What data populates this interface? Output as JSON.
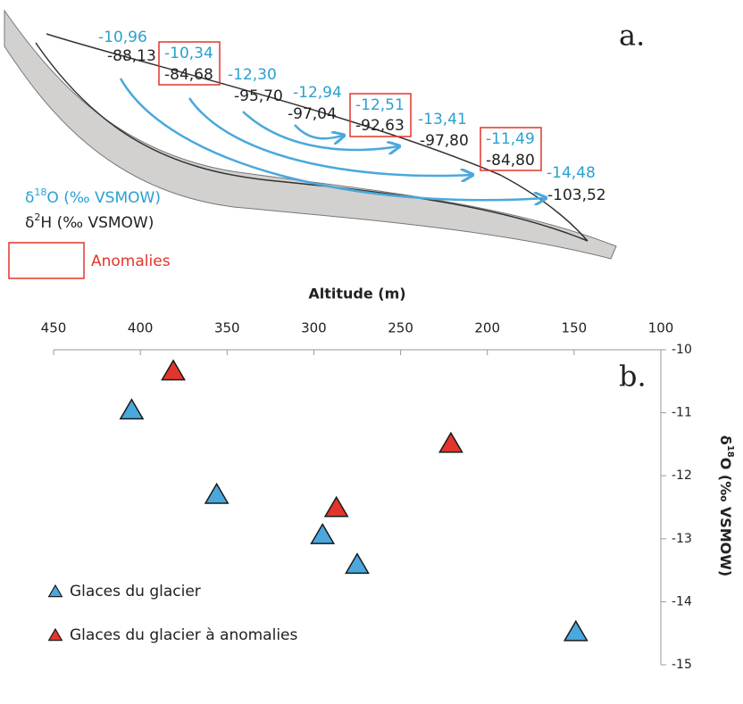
{
  "diagram": {
    "label": "a.",
    "pairs": [
      {
        "d18O": "-10,96",
        "d2H": "-88,13",
        "anomaly": false
      },
      {
        "d18O": "-10,34",
        "d2H": "-84,68",
        "anomaly": true
      },
      {
        "d18O": "-12,30",
        "d2H": "-95,70",
        "anomaly": false
      },
      {
        "d18O": "-12,94",
        "d2H": "-97,04",
        "anomaly": false
      },
      {
        "d18O": "-12,51",
        "d2H": "-92,63",
        "anomaly": true
      },
      {
        "d18O": "-13,41",
        "d2H": "-97,80",
        "anomaly": false
      },
      {
        "d18O": "-11,49",
        "d2H": "-84,80",
        "anomaly": true
      },
      {
        "d18O": "-14,48",
        "d2H": "-103,52",
        "anomaly": false
      }
    ],
    "legend": {
      "o": {
        "prefix": "δ",
        "sup": "18",
        "suffix": "O (‰ VSMOW)"
      },
      "h": {
        "prefix": "δ",
        "sup": "2",
        "suffix": "H (‰ VSMOW)"
      },
      "anomalies": "Anomalies"
    }
  },
  "chart_data": {
    "type": "scatter",
    "label": "b.",
    "x_label": "Altitude (m)",
    "y_label": {
      "prefix": "δ",
      "sup": "18",
      "suffix": "O (‰ VSMOW)"
    },
    "xlim": [
      450,
      100
    ],
    "xticks": [
      450,
      400,
      350,
      300,
      250,
      200,
      150,
      100
    ],
    "ylim": [
      -15,
      -10
    ],
    "yticks": [
      -10,
      -11,
      -12,
      -13,
      -14,
      -15
    ],
    "series": [
      {
        "name": "Glaces du glacier",
        "color": "#4aa8dc",
        "x": [
          405,
          356,
          295,
          275,
          149
        ],
        "values": [
          -10.96,
          -12.3,
          -12.94,
          -13.41,
          -14.48
        ]
      },
      {
        "name": "Glaces du glacier à anomalies",
        "color": "#e2352b",
        "x": [
          381,
          287,
          221
        ],
        "values": [
          -10.34,
          -12.51,
          -11.49
        ]
      }
    ]
  }
}
